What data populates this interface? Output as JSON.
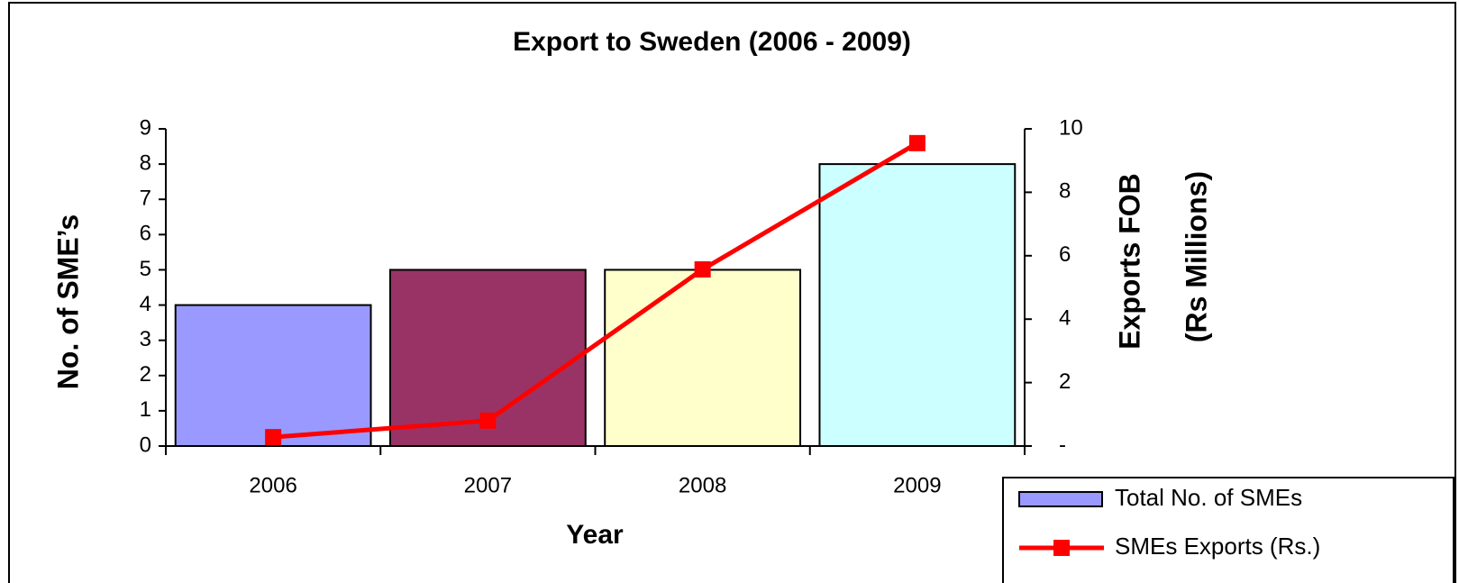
{
  "chart_data": {
    "type": "bar",
    "title": "Export to Sweden (2006 - 2009)",
    "xlabel": "Year",
    "ylabel": "No. of SME’s",
    "y2label": [
      "Exports FOB",
      "(Rs Millions)"
    ],
    "categories": [
      "2006",
      "2007",
      "2008",
      "2009"
    ],
    "ylim": [
      0,
      9
    ],
    "yticks": [
      0,
      1,
      2,
      3,
      4,
      5,
      6,
      7,
      8,
      9
    ],
    "y2lim": [
      0,
      10
    ],
    "y2ticks": [
      {
        "value": 0,
        "label": "-"
      },
      2,
      4,
      6,
      8,
      10
    ],
    "legend": "bottom-right",
    "series": [
      {
        "name": "Total No. of SMEs",
        "type": "bar",
        "color": "#9999ff",
        "colors": [
          "#9999ff",
          "#993366",
          "#ffffcc",
          "#ccffff"
        ],
        "values": [
          4,
          5,
          5,
          8
        ]
      },
      {
        "name": "SMEs Exports (Rs.)",
        "type": "line",
        "axis": "y2",
        "color": "#ff0000",
        "values": [
          0.28,
          0.8,
          5.57,
          9.55
        ]
      }
    ]
  }
}
